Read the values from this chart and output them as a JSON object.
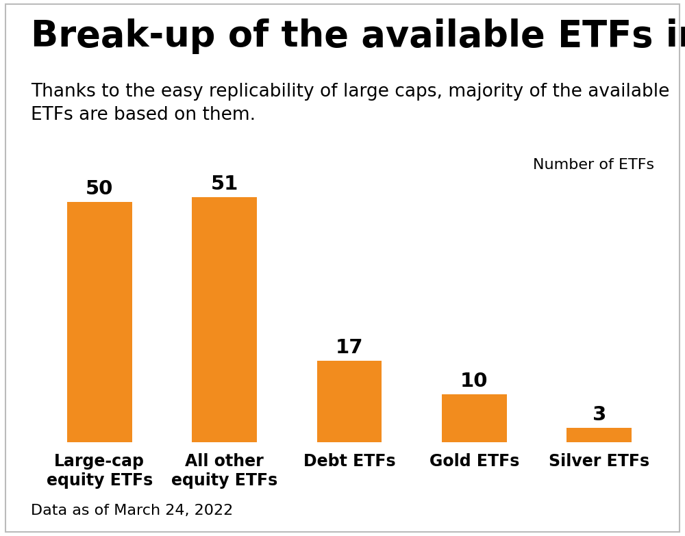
{
  "title": "Break-up of the available ETFs in India",
  "subtitle": "Thanks to the easy replicability of large caps, majority of the available\nETFs are based on them.",
  "ylabel_annotation": "Number of ETFs",
  "footer": "Data as of March 24, 2022",
  "categories": [
    "Large-cap\nequity ETFs",
    "All other\nequity ETFs",
    "Debt ETFs",
    "Gold ETFs",
    "Silver ETFs"
  ],
  "values": [
    50,
    51,
    17,
    10,
    3
  ],
  "bar_color": "#F28C1E",
  "background_color": "#FFFFFF",
  "ylim": [
    0,
    58
  ],
  "title_fontsize": 38,
  "subtitle_fontsize": 19,
  "value_fontsize": 21,
  "xlabel_fontsize": 17,
  "annotation_fontsize": 16,
  "footer_fontsize": 16,
  "border_color": "#BBBBBB"
}
